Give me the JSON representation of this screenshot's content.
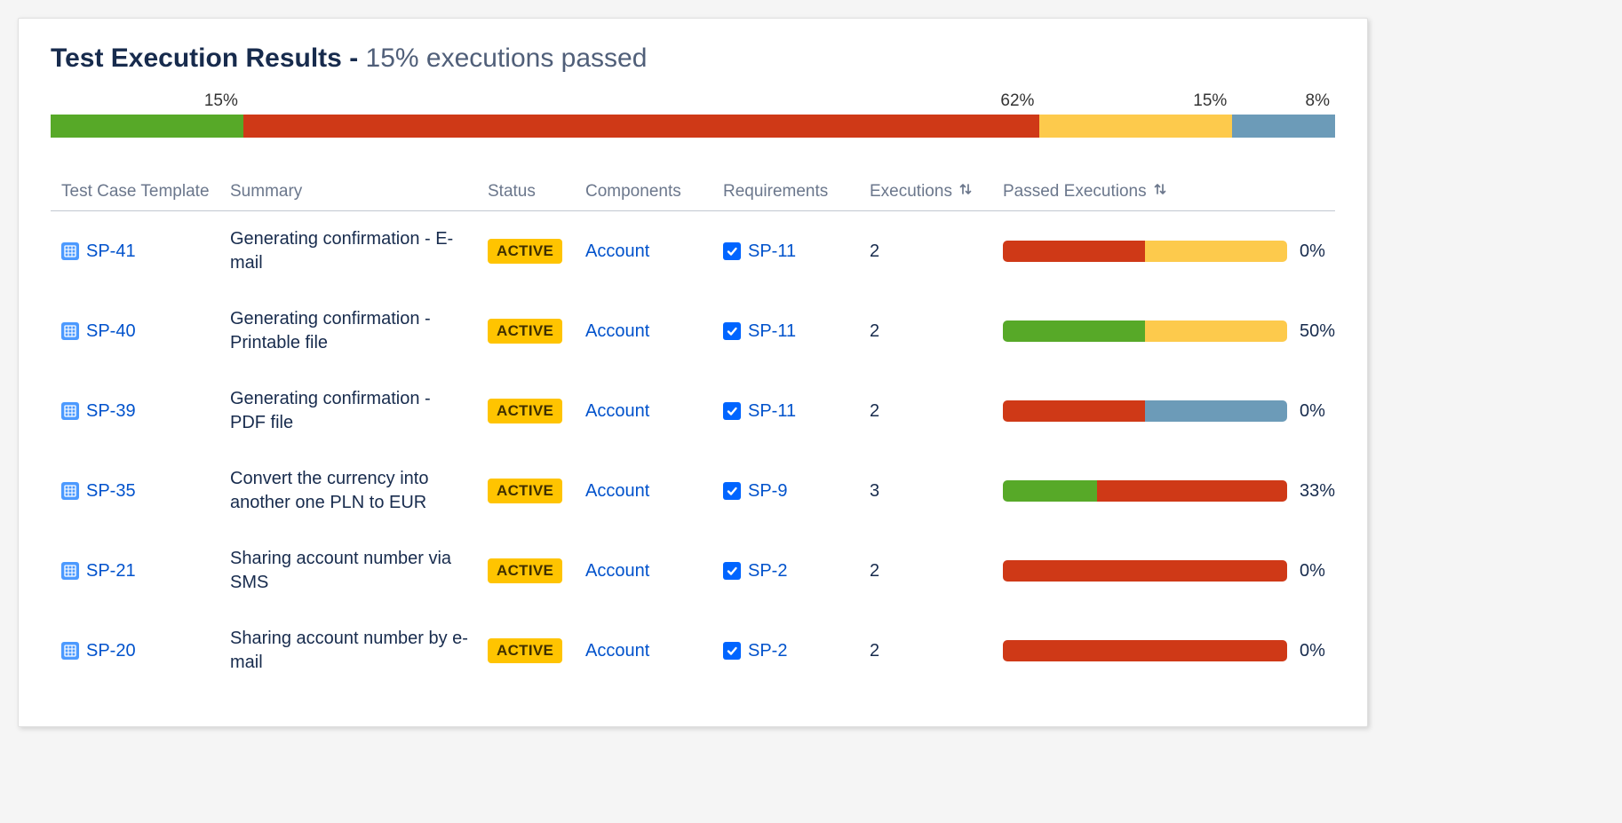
{
  "colors": {
    "green": "#57a928",
    "red": "#cf3917",
    "yellow": "#fdca4c",
    "blue": "#6c9bb8",
    "link": "#0052cc",
    "badge_bg": "#ffc400",
    "badge_fg": "#403000",
    "text_dark": "#172b4d",
    "text_muted": "#6b778c",
    "border": "#c1c7d0",
    "panel_bg": "#ffffff"
  },
  "header": {
    "title_strong": "Test Execution Results - ",
    "title_sub": "15% executions passed"
  },
  "summary_bar": {
    "segments": [
      {
        "label": "15%",
        "pct": 15,
        "color": "#57a928"
      },
      {
        "label": "62%",
        "pct": 62,
        "color": "#cf3917"
      },
      {
        "label": "15%",
        "pct": 15,
        "color": "#fdca4c"
      },
      {
        "label": "8%",
        "pct": 8,
        "color": "#6c9bb8"
      }
    ]
  },
  "table": {
    "columns": {
      "template": "Test Case Template",
      "summary": "Summary",
      "status": "Status",
      "components": "Components",
      "requirements": "Requirements",
      "executions": "Executions",
      "passed": "Passed Executions"
    },
    "rows": [
      {
        "key": "SP-41",
        "summary": "Generating confirmation - E-mail",
        "status": "ACTIVE",
        "component": "Account",
        "requirement": "SP-11",
        "executions": "2",
        "bar": [
          {
            "pct": 50,
            "color": "#cf3917"
          },
          {
            "pct": 50,
            "color": "#fdca4c"
          }
        ],
        "passed_pct": "0%"
      },
      {
        "key": "SP-40",
        "summary": "Generating confirmation - Printable file",
        "status": "ACTIVE",
        "component": "Account",
        "requirement": "SP-11",
        "executions": "2",
        "bar": [
          {
            "pct": 50,
            "color": "#57a928"
          },
          {
            "pct": 50,
            "color": "#fdca4c"
          }
        ],
        "passed_pct": "50%"
      },
      {
        "key": "SP-39",
        "summary": "Generating confirmation - PDF file",
        "status": "ACTIVE",
        "component": "Account",
        "requirement": "SP-11",
        "executions": "2",
        "bar": [
          {
            "pct": 50,
            "color": "#cf3917"
          },
          {
            "pct": 50,
            "color": "#6c9bb8"
          }
        ],
        "passed_pct": "0%"
      },
      {
        "key": "SP-35",
        "summary": "Convert the currency into another one PLN to EUR",
        "status": "ACTIVE",
        "component": "Account",
        "requirement": "SP-9",
        "executions": "3",
        "bar": [
          {
            "pct": 33,
            "color": "#57a928"
          },
          {
            "pct": 67,
            "color": "#cf3917"
          }
        ],
        "passed_pct": "33%"
      },
      {
        "key": "SP-21",
        "summary": "Sharing account number via SMS",
        "status": "ACTIVE",
        "component": "Account",
        "requirement": "SP-2",
        "executions": "2",
        "bar": [
          {
            "pct": 100,
            "color": "#cf3917"
          }
        ],
        "passed_pct": "0%"
      },
      {
        "key": "SP-20",
        "summary": "Sharing account number by e-mail",
        "status": "ACTIVE",
        "component": "Account",
        "requirement": "SP-2",
        "executions": "2",
        "bar": [
          {
            "pct": 100,
            "color": "#cf3917"
          }
        ],
        "passed_pct": "0%"
      }
    ]
  }
}
